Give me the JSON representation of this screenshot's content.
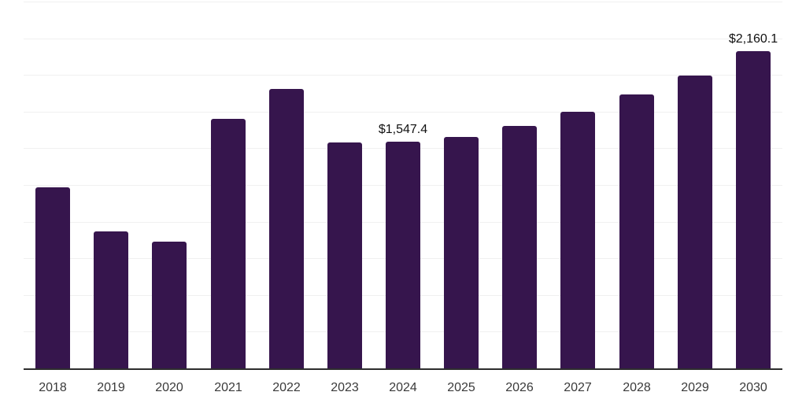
{
  "chart_data": {
    "type": "bar",
    "categories": [
      "2018",
      "2019",
      "2020",
      "2021",
      "2022",
      "2023",
      "2024",
      "2025",
      "2026",
      "2027",
      "2028",
      "2029",
      "2030"
    ],
    "values": [
      1235,
      935,
      865,
      1700,
      1903,
      1540,
      1547.4,
      1577,
      1652,
      1749,
      1867,
      1996,
      2160.1
    ],
    "data_labels": [
      "",
      "",
      "",
      "",
      "",
      "",
      "$1,547.4",
      "",
      "",
      "",
      "",
      "",
      "$2,160.1"
    ],
    "xlabel": "",
    "ylabel": "",
    "ylim": [
      0,
      2500
    ],
    "gridline_step": 250,
    "grid": true,
    "legend": false,
    "colors": {
      "bar": "#36154D",
      "gridline": "#F0F0F0",
      "axis_line": "#2E2E2E",
      "tick_label": "#3A3A3A",
      "data_label": "#111111"
    }
  }
}
